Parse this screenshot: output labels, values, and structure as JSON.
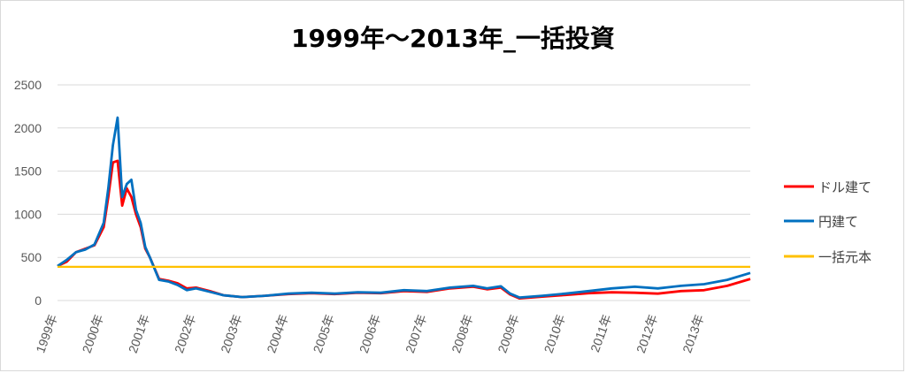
{
  "chart_data": {
    "type": "line",
    "title": "1999年～2013年_一括投資",
    "xlabel": "",
    "ylabel": "",
    "ylim": [
      0,
      2500
    ],
    "yticks": [
      0,
      500,
      1000,
      1500,
      2000,
      2500
    ],
    "x_tick_labels": [
      "1999年",
      "2000年",
      "2001年",
      "2002年",
      "2003年",
      "2004年",
      "2005年",
      "2006年",
      "2007年",
      "2008年",
      "2009年",
      "2010年",
      "2011年",
      "2012年",
      "2013年"
    ],
    "grid": true,
    "legend_position": "right",
    "x": [
      1999.0,
      1999.2,
      1999.4,
      1999.6,
      1999.8,
      2000.0,
      2000.1,
      2000.2,
      2000.3,
      2000.4,
      2000.5,
      2000.6,
      2000.7,
      2000.8,
      2000.9,
      2001.0,
      2001.2,
      2001.4,
      2001.6,
      2001.8,
      2002.0,
      2002.3,
      2002.6,
      2003.0,
      2003.5,
      2004.0,
      2004.5,
      2005.0,
      2005.5,
      2006.0,
      2006.5,
      2007.0,
      2007.5,
      2008.0,
      2008.3,
      2008.6,
      2008.8,
      2009.0,
      2009.5,
      2010.0,
      2010.5,
      2011.0,
      2011.5,
      2012.0,
      2012.5,
      2013.0,
      2013.5,
      2014.0
    ],
    "series": [
      {
        "name": "ドル建て",
        "color": "#FF0000",
        "values": [
          400,
          450,
          560,
          600,
          640,
          850,
          1200,
          1600,
          1620,
          1100,
          1300,
          1200,
          1000,
          850,
          600,
          500,
          250,
          230,
          200,
          140,
          150,
          110,
          60,
          40,
          55,
          75,
          85,
          75,
          90,
          85,
          110,
          100,
          140,
          160,
          130,
          150,
          70,
          25,
          45,
          65,
          85,
          95,
          90,
          80,
          110,
          120,
          170,
          250
        ]
      },
      {
        "name": "円建て",
        "color": "#0070C0",
        "values": [
          400,
          470,
          560,
          590,
          650,
          900,
          1300,
          1800,
          2120,
          1200,
          1350,
          1400,
          1050,
          900,
          620,
          500,
          240,
          220,
          180,
          120,
          140,
          100,
          60,
          40,
          55,
          80,
          90,
          80,
          95,
          90,
          120,
          110,
          150,
          170,
          140,
          165,
          80,
          35,
          55,
          80,
          110,
          140,
          160,
          140,
          170,
          190,
          240,
          320
        ]
      },
      {
        "name": "一括元本",
        "color": "#FFC000",
        "values": [
          390,
          390,
          390,
          390,
          390,
          390,
          390,
          390,
          390,
          390,
          390,
          390,
          390,
          390,
          390,
          390,
          390,
          390,
          390,
          390,
          390,
          390,
          390,
          390,
          390,
          390,
          390,
          390,
          390,
          390,
          390,
          390,
          390,
          390,
          390,
          390,
          390,
          390,
          390,
          390,
          390,
          390,
          390,
          390,
          390,
          390,
          390,
          390
        ]
      }
    ]
  }
}
